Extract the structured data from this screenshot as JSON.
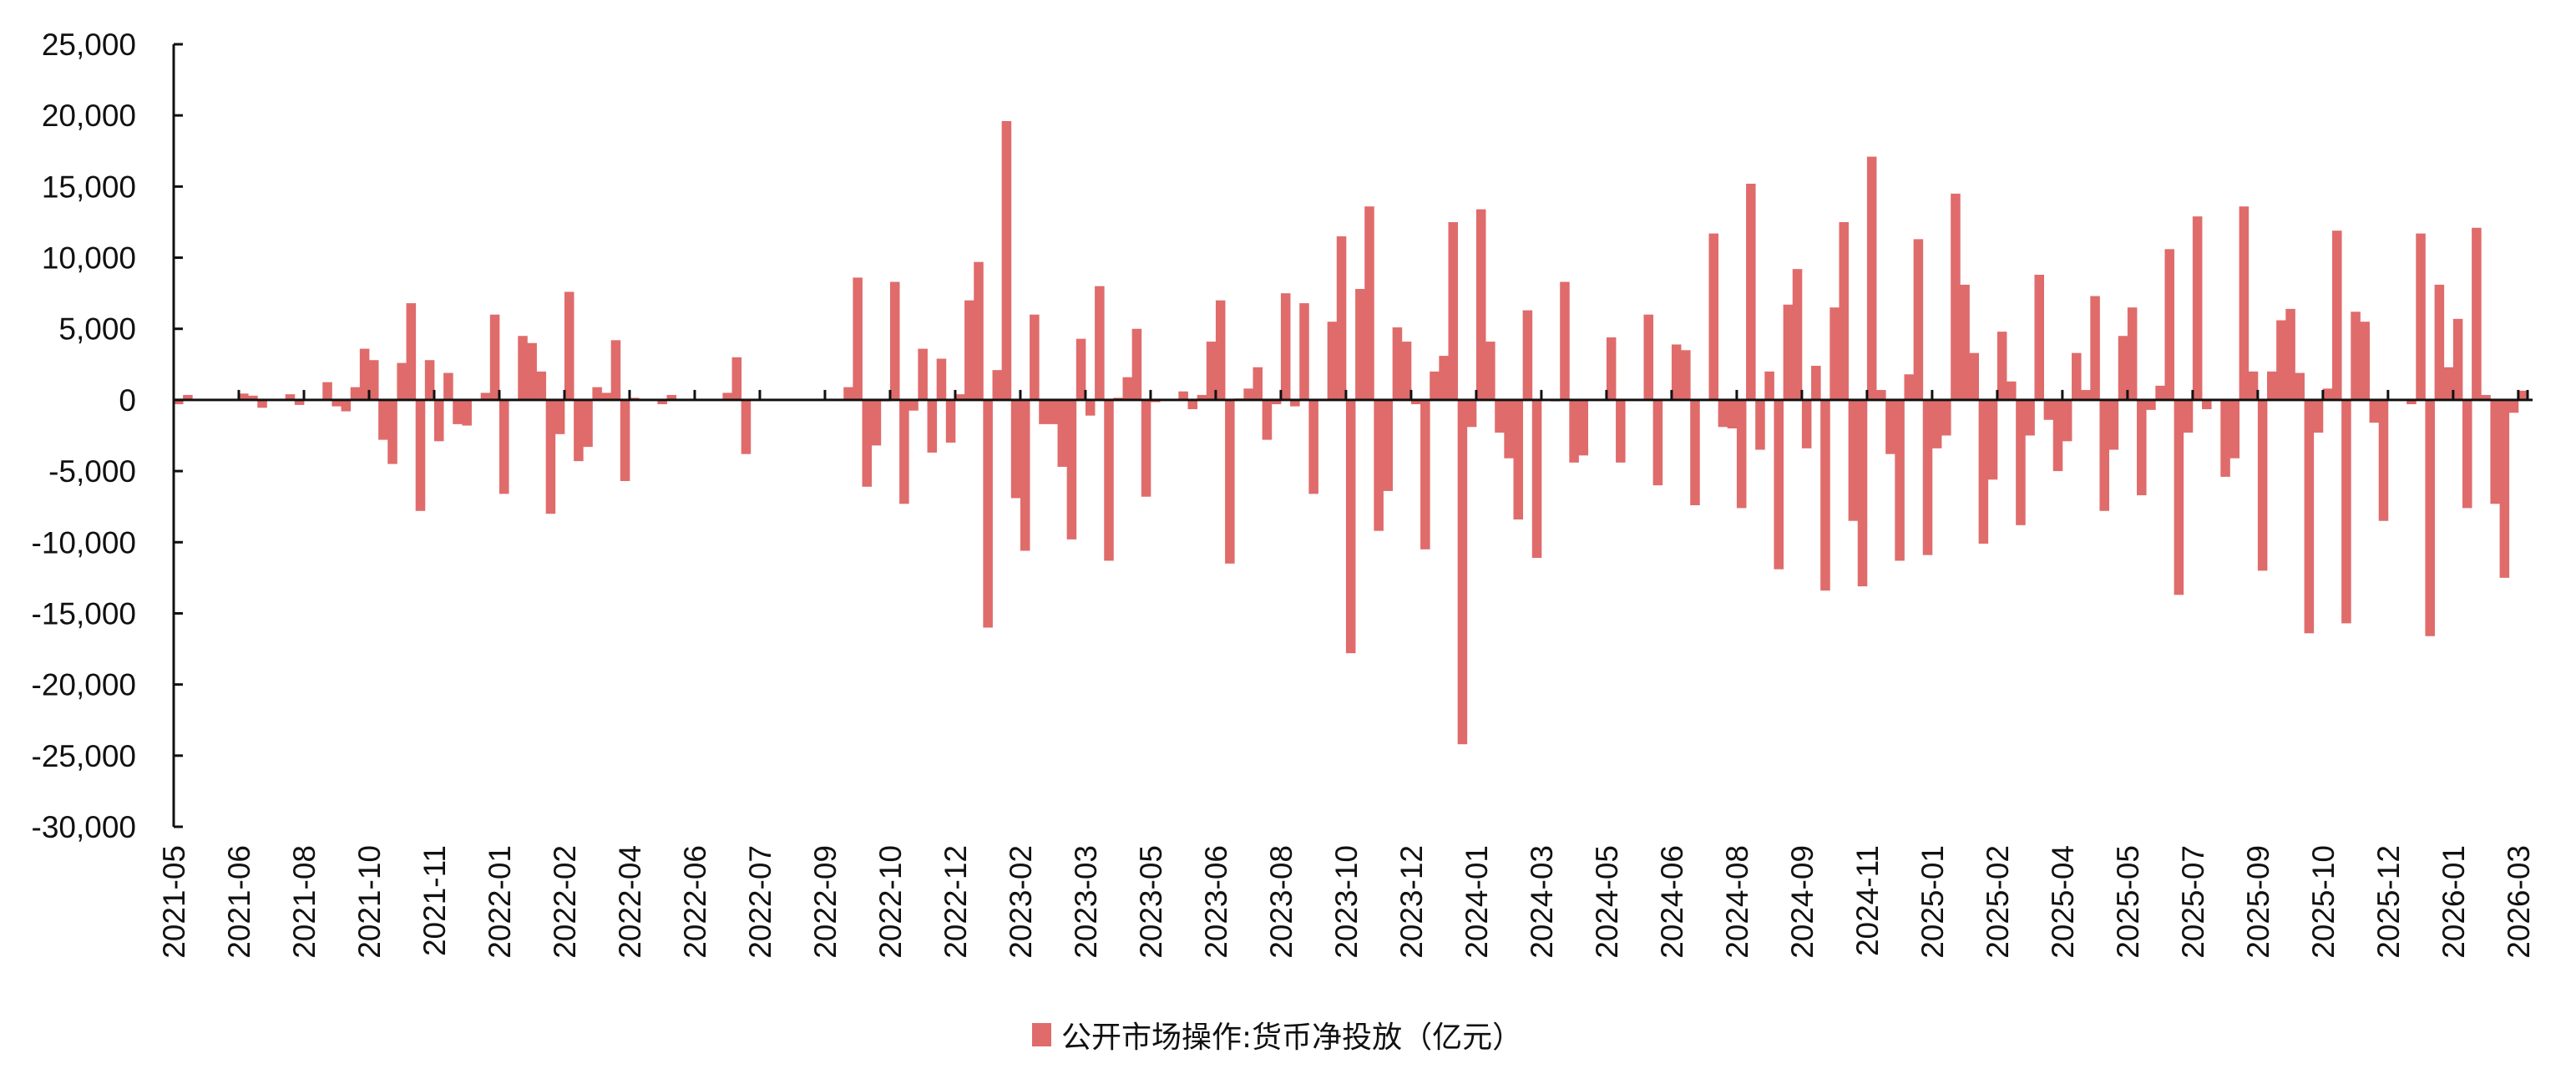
{
  "chart_data": {
    "type": "bar",
    "title": "",
    "xlabel": "",
    "ylabel": "",
    "ylim": [
      -30000,
      25000
    ],
    "yticks": [
      25000,
      20000,
      15000,
      10000,
      5000,
      0,
      -5000,
      -10000,
      -15000,
      -20000,
      -25000,
      -30000
    ],
    "ytick_labels": [
      "25,000",
      "20,000",
      "15,000",
      "10,000",
      "5,000",
      "0",
      "-5,000",
      "-10,000",
      "-15,000",
      "-20,000",
      "-25,000",
      "-30,000"
    ],
    "grid": false,
    "legend_position": "bottom",
    "bars_per_tick": 7,
    "x_tick_labels": [
      "2021-05",
      "2021-06",
      "2021-08",
      "2021-10",
      "2021-11",
      "2022-01",
      "2022-02",
      "2022-04",
      "2022-06",
      "2022-07",
      "2022-09",
      "2022-10",
      "2022-12",
      "2023-02",
      "2023-03",
      "2023-05",
      "2023-06",
      "2023-08",
      "2023-10",
      "2023-12",
      "2024-01",
      "2024-03",
      "2024-05",
      "2024-06",
      "2024-08",
      "2024-09",
      "2024-11",
      "2025-01",
      "2025-02",
      "2025-04",
      "2025-05",
      "2025-07",
      "2025-09",
      "2025-10",
      "2025-12",
      "2026-01",
      "2026-03"
    ],
    "series": [
      {
        "name": "公开市场操作:货币净投放（亿元）",
        "color": "#E06B6B",
        "values": [
          -300,
          350,
          0,
          0,
          0,
          0,
          0,
          450,
          300,
          -550,
          0,
          0,
          400,
          -350,
          0,
          0,
          1250,
          -450,
          -800,
          900,
          3600,
          2800,
          -2800,
          -4500,
          2600,
          6800,
          -7800,
          2800,
          -2900,
          1900,
          -1700,
          -1800,
          0,
          500,
          6000,
          -6600,
          50,
          4500,
          4000,
          2000,
          -8000,
          -2400,
          7600,
          -4300,
          -3300,
          900,
          500,
          4200,
          -5700,
          150,
          0,
          50,
          -300,
          350,
          0,
          0,
          0,
          0,
          0,
          500,
          3000,
          -3800,
          0,
          50,
          0,
          0,
          0,
          0,
          0,
          0,
          0,
          0,
          900,
          8600,
          -6100,
          -3200,
          -100,
          8300,
          -7300,
          -750,
          3600,
          -3700,
          2900,
          -3000,
          400,
          7000,
          9700,
          -16000,
          2100,
          19600,
          -6900,
          -10600,
          6000,
          -1700,
          -1700,
          -4700,
          -9800,
          4300,
          -1100,
          8000,
          -11300,
          150,
          1600,
          5000,
          -6800,
          -150,
          0,
          50,
          600,
          -650,
          350,
          4100,
          7000,
          -11500,
          100,
          800,
          2300,
          -2800,
          -300,
          7500,
          -450,
          6800,
          -6600,
          0,
          5500,
          11500,
          -17800,
          7800,
          13600,
          -9200,
          -6400,
          5100,
          4100,
          -300,
          -10500,
          2000,
          3100,
          12500,
          -24200,
          -1900,
          13400,
          4100,
          -2300,
          -4100,
          -8400,
          6300,
          -11100,
          0,
          -100,
          8300,
          -4400,
          -3900,
          0,
          0,
          4400,
          -4400,
          0,
          0,
          6000,
          -6000,
          0,
          3900,
          3500,
          -7400,
          0,
          11700,
          -1900,
          -2000,
          -7600,
          15200,
          -3500,
          2000,
          -11900,
          6700,
          9200,
          -3400,
          2400,
          -13400,
          6500,
          12500,
          -8500,
          -13100,
          17100,
          700,
          -3800,
          -11300,
          1800,
          11300,
          -10900,
          -3400,
          -2500,
          14500,
          8100,
          3300,
          -10100,
          -5600,
          4800,
          1300,
          -8800,
          -2500,
          8800,
          -1400,
          -5000,
          -2900,
          3300,
          700,
          7300,
          -7800,
          -3500,
          4500,
          6500,
          -6700,
          -700,
          1000,
          10600,
          -13700,
          -2300,
          12900,
          -650,
          0,
          -5400,
          -4100,
          13600,
          2000,
          -12000,
          2000,
          5600,
          6400,
          1900,
          -16400,
          -2300,
          800,
          11900,
          -15700,
          6200,
          5500,
          -1600,
          -8500,
          0,
          0,
          -300,
          11700,
          -16600,
          8100,
          2300,
          5700,
          -7600,
          12100,
          350,
          -7300,
          -12500,
          -900,
          650
        ]
      }
    ]
  },
  "legend": {
    "label": "公开市场操作:货币净投放（亿元）",
    "color": "#E06B6B"
  }
}
